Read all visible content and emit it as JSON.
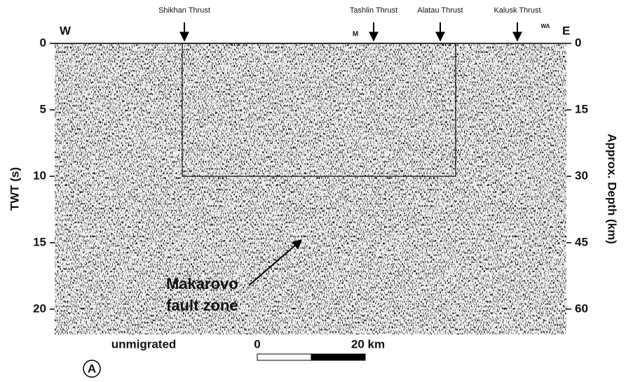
{
  "figure": {
    "west": "W",
    "east": "E",
    "thrusts": [
      "Shikhan Thrust",
      "Tashlin Thrust",
      "Alatau Thrust",
      "Kalusk Thrust"
    ],
    "markers": [
      "M",
      "WA"
    ],
    "left_axis": {
      "label": "TWT (s)",
      "lim": [
        0,
        21.9
      ],
      "ticks": [
        0,
        5,
        10,
        15,
        20
      ]
    },
    "right_axis": {
      "label": "Approx. Depth (km)",
      "lim": [
        0,
        65.7
      ],
      "ticks": [
        0,
        15,
        30,
        45,
        60
      ]
    },
    "annotation": [
      "Makarovo",
      "fault zone"
    ],
    "caption": "unmigrated",
    "scale_bar": {
      "start": "0",
      "end": "20 km"
    },
    "panel": "A"
  }
}
